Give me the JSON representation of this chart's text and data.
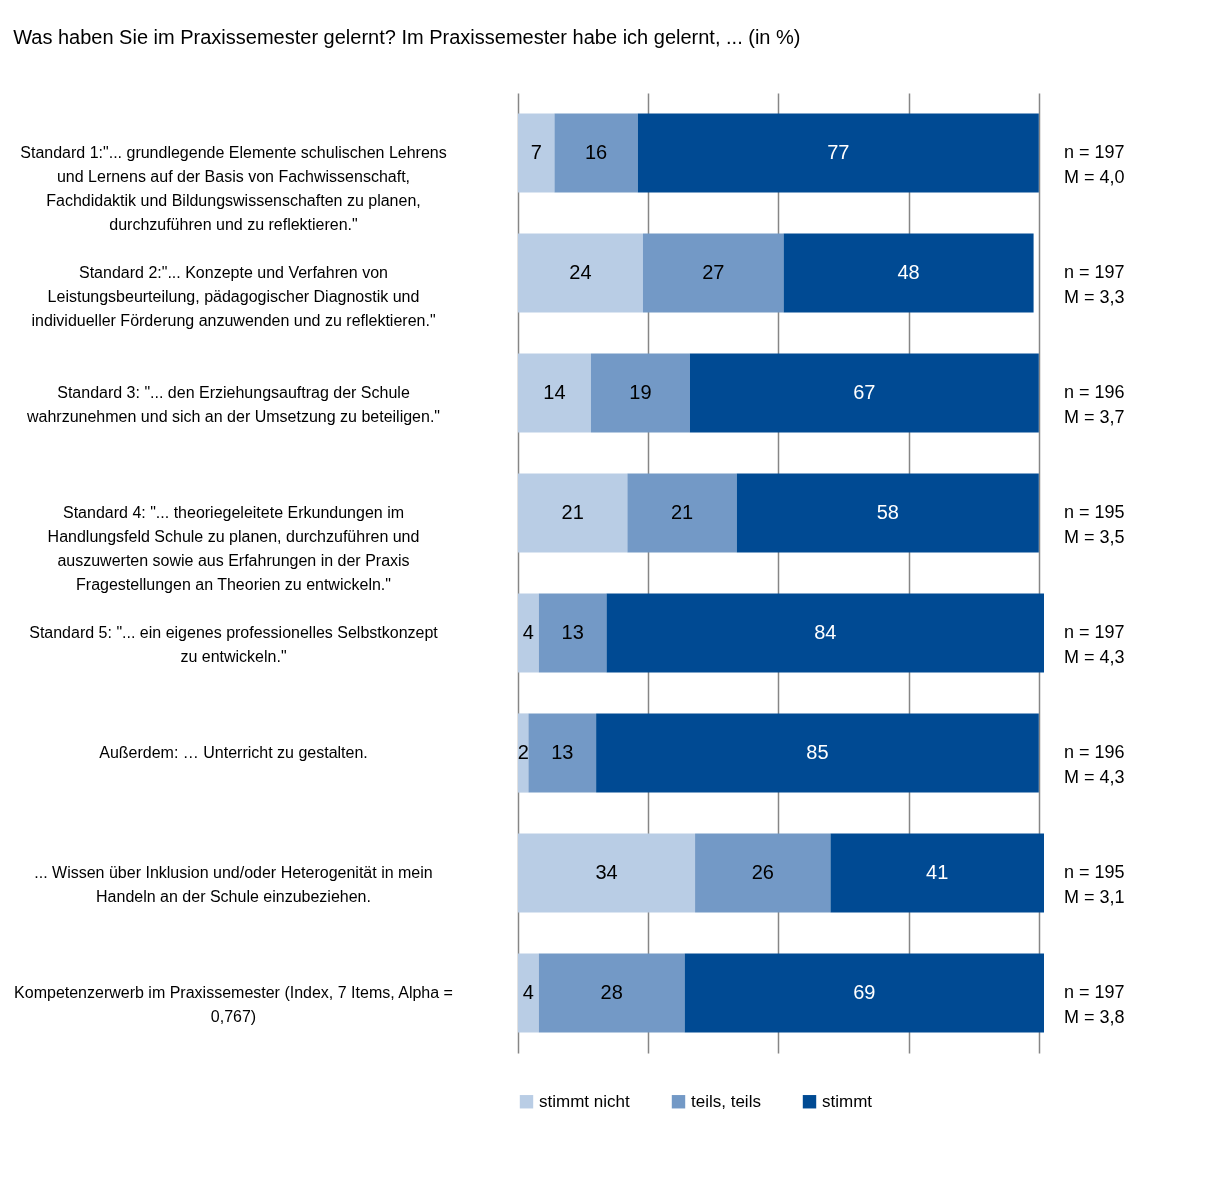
{
  "chart_data": {
    "type": "bar",
    "orientation": "horizontal",
    "stacked": true,
    "title": "Was haben Sie im Praxissemester gelernt? Im Praxissemester habe ich gelernt, ... (in %)",
    "categories": [
      "Standard 1:\"... grundlegende Elemente schulischen Lehrens und Lernens auf der Basis von Fachwissenschaft, Fachdidaktik und Bildungswissenschaften zu planen, durchzuführen und zu reflektieren.\"",
      "Standard 2:\"... Konzepte und Verfahren von Leistungsbeurteilung, pädagogischer Diagnostik und individueller Förderung anzuwenden und zu reflektieren.\"",
      "Standard 3: \"... den Erziehungsauftrag der Schule wahrzunehmen und sich an der Umsetzung zu beteiligen.\"",
      "Standard 4: \"... theoriegeleitete Erkundungen im Handlungsfeld Schule zu planen, durchzuführen und auszuwerten sowie aus Erfahrungen in der Praxis Fragestellungen an Theorien zu entwickeln.\"",
      "Standard 5: \"... ein eigenes professionelles Selbstkonzept zu entwickeln.\"",
      "Außerdem: … Unterricht zu gestalten.",
      "... Wissen über Inklusion und/oder Heterogenität in mein Handeln an der Schule einzubeziehen.",
      "Kompetenzerwerb im Praxissemester (Index, 7 Items, Alpha = 0,767)"
    ],
    "series": [
      {
        "name": "stimmt nicht",
        "color": "#b9cde5",
        "values": [
          7,
          24,
          14,
          21,
          4,
          2,
          34,
          4
        ]
      },
      {
        "name": "teils, teils",
        "color": "#7399c6",
        "values": [
          16,
          27,
          19,
          21,
          13,
          13,
          26,
          28
        ]
      },
      {
        "name": "stimmt",
        "color": "#004a93",
        "values": [
          77,
          48,
          67,
          58,
          84,
          85,
          41,
          69
        ]
      }
    ],
    "xlim": [
      0,
      101
    ],
    "xticks": [
      {
        "value": 0,
        "label": null
      },
      {
        "value": 25,
        "label": null
      },
      {
        "value": 50,
        "label": null
      },
      {
        "value": 75,
        "label": null
      },
      {
        "value": 100,
        "label": null
      }
    ],
    "tick_labels": "y",
    "grid": "x",
    "data_labels": true,
    "legend": "bottom",
    "annotations": [
      "n = 197\nM = 4,0",
      "n = 197\nM = 3,3",
      "n = 196\nM = 3,7",
      "n = 195\nM = 3,5",
      "n = 197\nM = 4,3",
      "n = 196\nM = 4,3",
      "n = 195\nM = 3,1",
      "n = 197\nM = 3,8"
    ]
  }
}
